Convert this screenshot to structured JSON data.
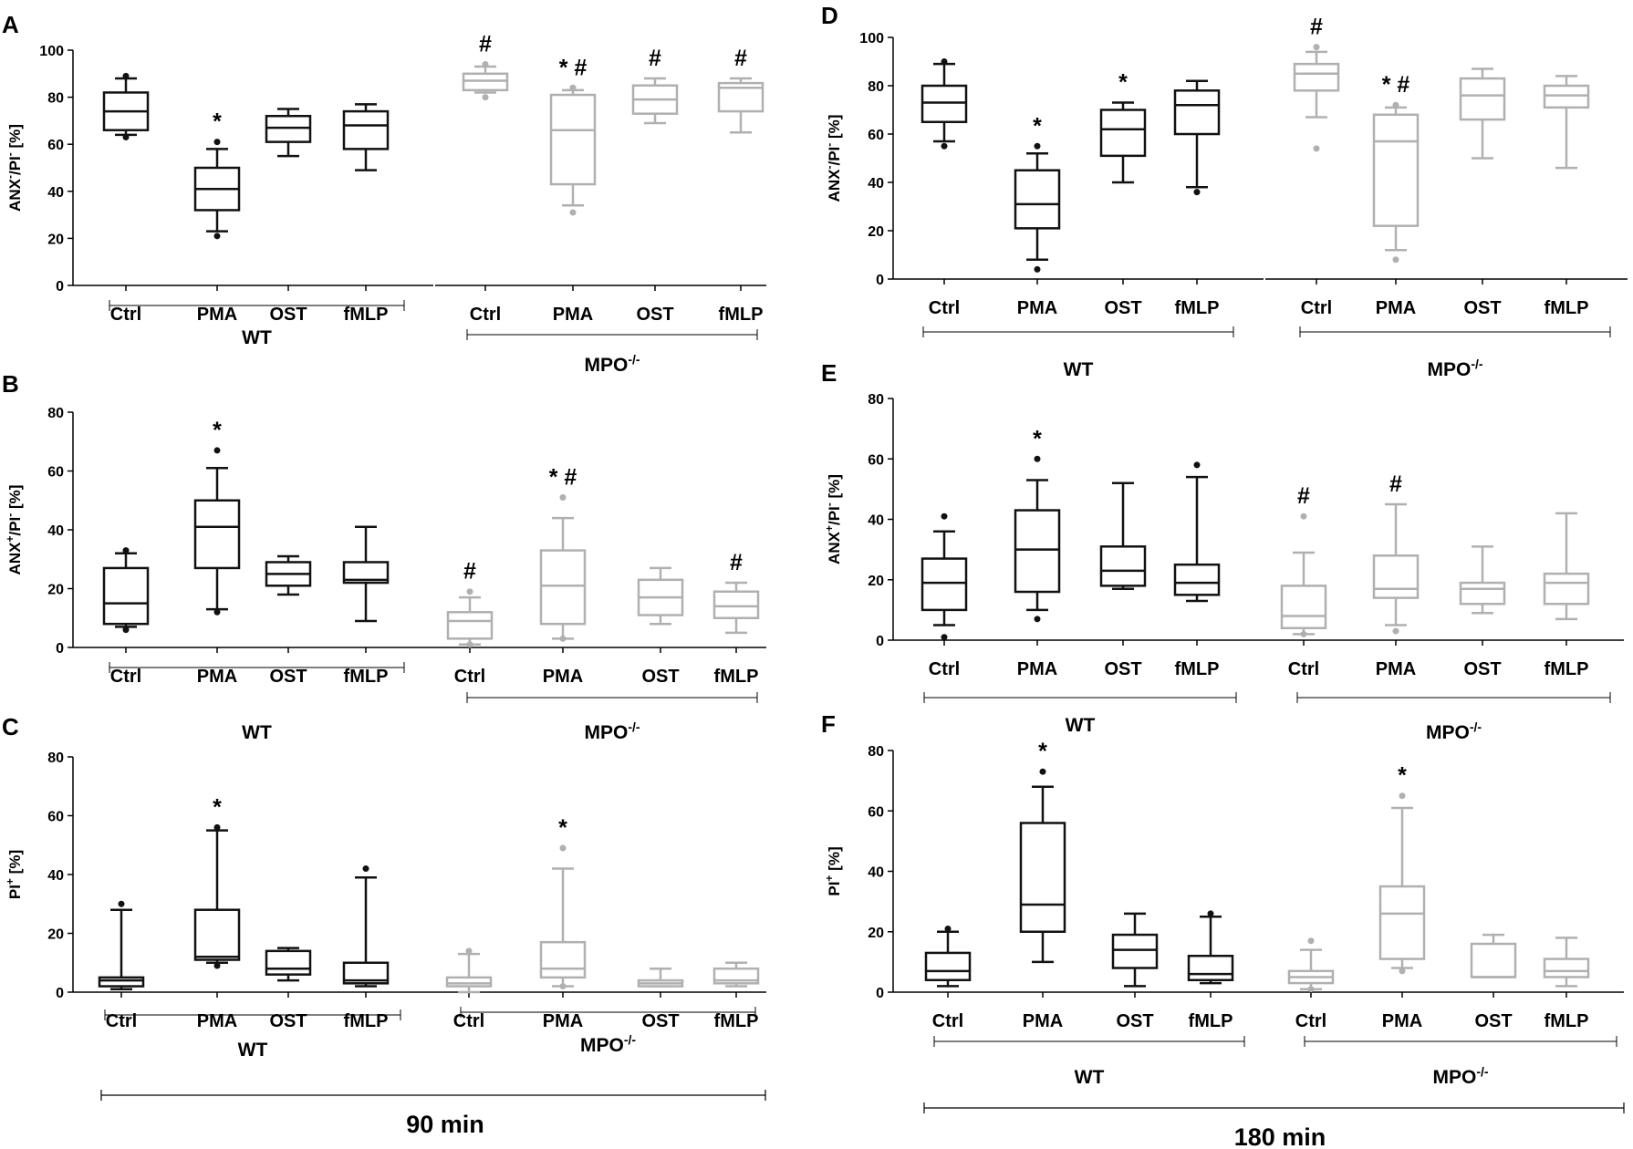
{
  "colors": {
    "wt": "#111111",
    "ko": "#b0b0b0",
    "axis": "#000000"
  },
  "footer": {
    "left_time": "90 min",
    "right_time": "180 min"
  },
  "chart_data": [
    {
      "panel": "A",
      "type": "box",
      "ylabel_main": "ANX",
      "ylabel_sup1": "-",
      "ylabel_mid": "/PI",
      "ylabel_sup2": "-",
      "ylabel_tail": " [%]",
      "ylim": [
        0,
        100
      ],
      "yticks": [
        "0",
        "20",
        "40",
        "60",
        "80",
        "100"
      ],
      "groups": [
        {
          "name": "WT",
          "sup": "",
          "color": "wt",
          "categories": [
            "Ctrl",
            "PMA",
            "OST",
            "fMLP"
          ],
          "boxes": [
            {
              "min": 64,
              "q1": 66,
              "median": 74,
              "q3": 82,
              "max": 88,
              "outliers": [
                89,
                63
              ],
              "sig": ""
            },
            {
              "min": 23,
              "q1": 32,
              "median": 41,
              "q3": 50,
              "max": 58,
              "outliers": [
                61,
                21
              ],
              "sig": "*"
            },
            {
              "min": 55,
              "q1": 61,
              "median": 67,
              "q3": 72,
              "max": 75,
              "outliers": [],
              "sig": ""
            },
            {
              "min": 49,
              "q1": 58,
              "median": 68,
              "q3": 74,
              "max": 77,
              "outliers": [],
              "sig": ""
            }
          ]
        },
        {
          "name": "MPO",
          "sup": "-/-",
          "color": "ko",
          "categories": [
            "Ctrl",
            "PMA",
            "OST",
            "fMLP"
          ],
          "boxes": [
            {
              "min": 82,
              "q1": 83,
              "median": 87,
              "q3": 90,
              "max": 93,
              "outliers": [
                94,
                80
              ],
              "sig": "#"
            },
            {
              "min": 34,
              "q1": 43,
              "median": 66,
              "q3": 81,
              "max": 83,
              "outliers": [
                84,
                31
              ],
              "sig": "* #"
            },
            {
              "min": 69,
              "q1": 73,
              "median": 79,
              "q3": 85,
              "max": 88,
              "outliers": [],
              "sig": "#"
            },
            {
              "min": 65,
              "q1": 74,
              "median": 84,
              "q3": 86,
              "max": 88,
              "outliers": [],
              "sig": "#"
            }
          ]
        }
      ]
    },
    {
      "panel": "B",
      "type": "box",
      "ylabel_main": "ANX",
      "ylabel_sup1": "+",
      "ylabel_mid": "/PI",
      "ylabel_sup2": "-",
      "ylabel_tail": " [%]",
      "ylim": [
        0,
        80
      ],
      "yticks": [
        "0",
        "20",
        "40",
        "60",
        "80"
      ],
      "groups": [
        {
          "name": "WT",
          "sup": "",
          "color": "wt",
          "categories": [
            "Ctrl",
            "PMA",
            "OST",
            "fMLP"
          ],
          "boxes": [
            {
              "min": 7,
              "q1": 8,
              "median": 15,
              "q3": 27,
              "max": 32,
              "outliers": [
                33,
                6
              ],
              "sig": ""
            },
            {
              "min": 13,
              "q1": 27,
              "median": 41,
              "q3": 50,
              "max": 61,
              "outliers": [
                67,
                12
              ],
              "sig": "*"
            },
            {
              "min": 18,
              "q1": 21,
              "median": 25,
              "q3": 29,
              "max": 31,
              "outliers": [],
              "sig": ""
            },
            {
              "min": 9,
              "q1": 22,
              "median": 23,
              "q3": 29,
              "max": 41,
              "outliers": [],
              "sig": ""
            }
          ]
        },
        {
          "name": "MPO",
          "sup": "-/-",
          "color": "ko",
          "categories": [
            "Ctrl",
            "PMA",
            "OST",
            "fMLP"
          ],
          "boxes": [
            {
              "min": 1,
              "q1": 3,
              "median": 9,
              "q3": 12,
              "max": 17,
              "outliers": [
                19,
                1
              ],
              "sig": "#"
            },
            {
              "min": 3,
              "q1": 8,
              "median": 21,
              "q3": 33,
              "max": 44,
              "outliers": [
                51,
                3
              ],
              "sig": "* #"
            },
            {
              "min": 8,
              "q1": 11,
              "median": 17,
              "q3": 23,
              "max": 27,
              "outliers": [],
              "sig": ""
            },
            {
              "min": 5,
              "q1": 10,
              "median": 14,
              "q3": 19,
              "max": 22,
              "outliers": [],
              "sig": "#"
            }
          ]
        }
      ]
    },
    {
      "panel": "C",
      "type": "box",
      "ylabel_main": "PI",
      "ylabel_sup1": "+",
      "ylabel_mid": "",
      "ylabel_sup2": "",
      "ylabel_tail": " [%]",
      "ylim": [
        0,
        80
      ],
      "yticks": [
        "0",
        "20",
        "40",
        "60",
        "80"
      ],
      "groups": [
        {
          "name": "WT",
          "sup": "",
          "color": "wt",
          "categories": [
            "Ctrl",
            "PMA",
            "OST",
            "fMLP"
          ],
          "boxes": [
            {
              "min": 1,
              "q1": 2,
              "median": 4,
              "q3": 5,
              "max": 28,
              "outliers": [
                30
              ],
              "sig": ""
            },
            {
              "min": 10,
              "q1": 11,
              "median": 12,
              "q3": 28,
              "max": 55,
              "outliers": [
                56,
                9
              ],
              "sig": "*"
            },
            {
              "min": 4,
              "q1": 6,
              "median": 8,
              "q3": 14,
              "max": 15,
              "outliers": [],
              "sig": ""
            },
            {
              "min": 2,
              "q1": 3,
              "median": 4,
              "q3": 10,
              "max": 39,
              "outliers": [
                42
              ],
              "sig": ""
            }
          ]
        },
        {
          "name": "MPO",
          "sup": "-/-",
          "color": "ko",
          "categories": [
            "Ctrl",
            "PMA",
            "OST",
            "fMLP"
          ],
          "boxes": [
            {
              "min": 0,
              "q1": 2,
              "median": 3,
              "q3": 5,
              "max": 13,
              "outliers": [
                14
              ],
              "sig": ""
            },
            {
              "min": 2,
              "q1": 5,
              "median": 8,
              "q3": 17,
              "max": 42,
              "outliers": [
                49,
                2
              ],
              "sig": "*"
            },
            {
              "min": 2,
              "q1": 2,
              "median": 3,
              "q3": 4,
              "max": 8,
              "outliers": [],
              "sig": ""
            },
            {
              "min": 2,
              "q1": 3,
              "median": 4,
              "q3": 8,
              "max": 10,
              "outliers": [],
              "sig": ""
            }
          ]
        }
      ]
    },
    {
      "panel": "D",
      "type": "box",
      "ylabel_main": "ANX",
      "ylabel_sup1": "-",
      "ylabel_mid": "/PI",
      "ylabel_sup2": "-",
      "ylabel_tail": " [%]",
      "ylim": [
        0,
        100
      ],
      "yticks": [
        "0",
        "20",
        "40",
        "60",
        "80",
        "100"
      ],
      "groups": [
        {
          "name": "WT",
          "sup": "",
          "color": "wt",
          "categories": [
            "Ctrl",
            "PMA",
            "OST",
            "fMLP"
          ],
          "boxes": [
            {
              "min": 57,
              "q1": 65,
              "median": 73,
              "q3": 80,
              "max": 89,
              "outliers": [
                90,
                55
              ],
              "sig": ""
            },
            {
              "min": 8,
              "q1": 21,
              "median": 31,
              "q3": 45,
              "max": 52,
              "outliers": [
                55,
                4
              ],
              "sig": "*"
            },
            {
              "min": 40,
              "q1": 51,
              "median": 62,
              "q3": 70,
              "max": 73,
              "outliers": [],
              "sig": "*"
            },
            {
              "min": 38,
              "q1": 60,
              "median": 72,
              "q3": 78,
              "max": 82,
              "outliers": [
                36
              ],
              "sig": ""
            }
          ]
        },
        {
          "name": "MPO",
          "sup": "-/-",
          "color": "ko",
          "categories": [
            "Ctrl",
            "PMA",
            "OST",
            "fMLP"
          ],
          "boxes": [
            {
              "min": 67,
              "q1": 78,
              "median": 85,
              "q3": 89,
              "max": 94,
              "outliers": [
                96,
                54
              ],
              "sig": "#"
            },
            {
              "min": 12,
              "q1": 22,
              "median": 57,
              "q3": 68,
              "max": 71,
              "outliers": [
                72,
                8
              ],
              "sig": "* #"
            },
            {
              "min": 50,
              "q1": 66,
              "median": 76,
              "q3": 83,
              "max": 87,
              "outliers": [],
              "sig": ""
            },
            {
              "min": 46,
              "q1": 71,
              "median": 76,
              "q3": 80,
              "max": 84,
              "outliers": [],
              "sig": ""
            }
          ]
        }
      ]
    },
    {
      "panel": "E",
      "type": "box",
      "ylabel_main": "ANX",
      "ylabel_sup1": "+",
      "ylabel_mid": "/PI",
      "ylabel_sup2": "-",
      "ylabel_tail": " [%]",
      "ylim": [
        0,
        80
      ],
      "yticks": [
        "0",
        "20",
        "40",
        "60",
        "80"
      ],
      "groups": [
        {
          "name": "WT",
          "sup": "",
          "color": "wt",
          "categories": [
            "Ctrl",
            "PMA",
            "OST",
            "fMLP"
          ],
          "boxes": [
            {
              "min": 5,
              "q1": 10,
              "median": 19,
              "q3": 27,
              "max": 36,
              "outliers": [
                41,
                1
              ],
              "sig": ""
            },
            {
              "min": 10,
              "q1": 16,
              "median": 30,
              "q3": 43,
              "max": 53,
              "outliers": [
                60,
                7
              ],
              "sig": "*"
            },
            {
              "min": 17,
              "q1": 18,
              "median": 23,
              "q3": 31,
              "max": 52,
              "outliers": [],
              "sig": ""
            },
            {
              "min": 13,
              "q1": 15,
              "median": 19,
              "q3": 25,
              "max": 54,
              "outliers": [
                58
              ],
              "sig": ""
            }
          ]
        },
        {
          "name": "MPO",
          "sup": "-/-",
          "color": "ko",
          "categories": [
            "Ctrl",
            "PMA",
            "OST",
            "fMLP"
          ],
          "boxes": [
            {
              "min": 2,
              "q1": 4,
              "median": 8,
              "q3": 18,
              "max": 29,
              "outliers": [
                41,
                2
              ],
              "sig": "#"
            },
            {
              "min": 5,
              "q1": 14,
              "median": 17,
              "q3": 28,
              "max": 45,
              "outliers": [
                3
              ],
              "sig": "#"
            },
            {
              "min": 9,
              "q1": 12,
              "median": 17,
              "q3": 19,
              "max": 31,
              "outliers": [],
              "sig": ""
            },
            {
              "min": 7,
              "q1": 12,
              "median": 19,
              "q3": 22,
              "max": 42,
              "outliers": [],
              "sig": ""
            }
          ]
        }
      ]
    },
    {
      "panel": "F",
      "type": "box",
      "ylabel_main": "PI",
      "ylabel_sup1": "+",
      "ylabel_mid": "",
      "ylabel_sup2": "",
      "ylabel_tail": " [%]",
      "ylim": [
        0,
        80
      ],
      "yticks": [
        "0",
        "20",
        "40",
        "60",
        "80"
      ],
      "groups": [
        {
          "name": "WT",
          "sup": "",
          "color": "wt",
          "categories": [
            "Ctrl",
            "PMA",
            "OST",
            "fMLP"
          ],
          "boxes": [
            {
              "min": 2,
              "q1": 4,
              "median": 7,
              "q3": 13,
              "max": 20,
              "outliers": [
                21
              ],
              "sig": ""
            },
            {
              "min": 10,
              "q1": 20,
              "median": 29,
              "q3": 56,
              "max": 68,
              "outliers": [
                73
              ],
              "sig": "*"
            },
            {
              "min": 2,
              "q1": 8,
              "median": 14,
              "q3": 19,
              "max": 26,
              "outliers": [],
              "sig": ""
            },
            {
              "min": 3,
              "q1": 4,
              "median": 6,
              "q3": 12,
              "max": 25,
              "outliers": [
                26
              ],
              "sig": ""
            }
          ]
        },
        {
          "name": "MPO",
          "sup": "-/-",
          "color": "ko",
          "categories": [
            "Ctrl",
            "PMA",
            "OST",
            "fMLP"
          ],
          "boxes": [
            {
              "min": 1,
              "q1": 3,
              "median": 5,
              "q3": 7,
              "max": 14,
              "outliers": [
                17,
                1
              ],
              "sig": ""
            },
            {
              "min": 8,
              "q1": 11,
              "median": 26,
              "q3": 35,
              "max": 61,
              "outliers": [
                65,
                7
              ],
              "sig": "*"
            },
            {
              "min": 5,
              "q1": 5,
              "median": 5,
              "q3": 16,
              "max": 19,
              "outliers": [],
              "sig": ""
            },
            {
              "min": 2,
              "q1": 5,
              "median": 7,
              "q3": 11,
              "max": 18,
              "outliers": [],
              "sig": ""
            }
          ]
        }
      ]
    }
  ]
}
